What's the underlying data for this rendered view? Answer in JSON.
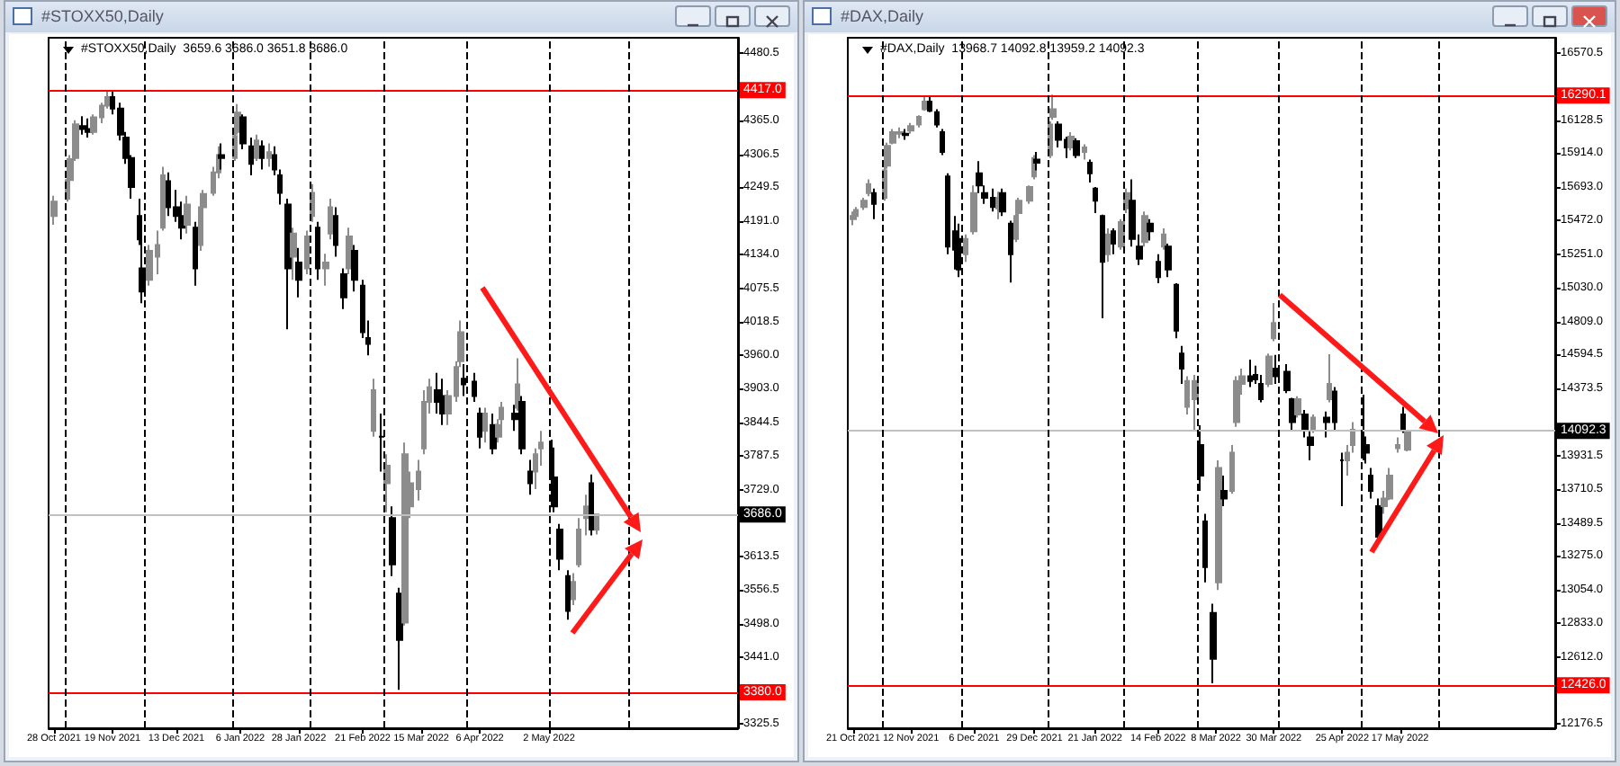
{
  "chart_data": [
    {
      "type": "candlestick",
      "title": "#STOXX50,Daily",
      "subtitle": "#STOXX50,Daily  3659.6 3686.0 3651.8 3686.0",
      "x": [
        "2021-10-28",
        "2021-11-02",
        "2021-11-03",
        "2021-11-05",
        "2021-11-08",
        "2021-11-10",
        "2021-11-12",
        "2021-11-15",
        "2021-11-17",
        "2021-11-19",
        "2021-11-22",
        "2021-11-24",
        "2021-11-26",
        "2021-11-29",
        "2021-11-30",
        "2021-12-03",
        "2021-12-06",
        "2021-12-08",
        "2021-12-10",
        "2021-12-13",
        "2021-12-15",
        "2021-12-17",
        "2021-12-20",
        "2021-12-22",
        "2021-12-23",
        "2021-12-27",
        "2021-12-29",
        "2021-12-30",
        "2022-01-04",
        "2022-01-05",
        "2022-01-07",
        "2022-01-10",
        "2022-01-12",
        "2022-01-14",
        "2022-01-17",
        "2022-01-19",
        "2022-01-21",
        "2022-01-24",
        "2022-01-26",
        "2022-01-28",
        "2022-01-31",
        "2022-02-02",
        "2022-02-04",
        "2022-02-07",
        "2022-02-09",
        "2022-02-11",
        "2022-02-14",
        "2022-02-16",
        "2022-02-18",
        "2022-02-21",
        "2022-02-23",
        "2022-02-25",
        "2022-02-28",
        "2022-03-02",
        "2022-03-04",
        "2022-03-07",
        "2022-03-09",
        "2022-03-11",
        "2022-03-14",
        "2022-03-16",
        "2022-03-18",
        "2022-03-21",
        "2022-03-23",
        "2022-03-25",
        "2022-03-28",
        "2022-03-30",
        "2022-03-31",
        "2022-04-04",
        "2022-04-06",
        "2022-04-08",
        "2022-04-11",
        "2022-04-13",
        "2022-04-14",
        "2022-04-19",
        "2022-04-20",
        "2022-04-22",
        "2022-04-25",
        "2022-04-27",
        "2022-04-29",
        "2022-05-03",
        "2022-05-04",
        "2022-05-06",
        "2022-05-09",
        "2022-05-11",
        "2022-05-13",
        "2022-05-16",
        "2022-05-18",
        "2022-05-20"
      ],
      "ohlc": [
        [
          4200,
          4235,
          4185,
          4225
        ],
        [
          4230,
          4270,
          4225,
          4262
        ],
        [
          4262,
          4305,
          4250,
          4298
        ],
        [
          4300,
          4365,
          4295,
          4358
        ],
        [
          4355,
          4372,
          4340,
          4350
        ],
        [
          4350,
          4368,
          4335,
          4345
        ],
        [
          4345,
          4375,
          4340,
          4370
        ],
        [
          4370,
          4395,
          4360,
          4390
        ],
        [
          4390,
          4415,
          4385,
          4405
        ],
        [
          4405,
          4417,
          4375,
          4385
        ],
        [
          4385,
          4395,
          4330,
          4340
        ],
        [
          4335,
          4345,
          4290,
          4300
        ],
        [
          4300,
          4305,
          4230,
          4250
        ],
        [
          4200,
          4230,
          4150,
          4160
        ],
        [
          4110,
          4175,
          4050,
          4070
        ],
        [
          4090,
          4150,
          4080,
          4140
        ],
        [
          4130,
          4175,
          4100,
          4150
        ],
        [
          4180,
          4285,
          4175,
          4270
        ],
        [
          4260,
          4275,
          4200,
          4215
        ],
        [
          4215,
          4245,
          4190,
          4200
        ],
        [
          4200,
          4225,
          4160,
          4180
        ],
        [
          4185,
          4235,
          4170,
          4220
        ],
        [
          4180,
          4190,
          4080,
          4110
        ],
        [
          4150,
          4225,
          4140,
          4215
        ],
        [
          4215,
          4245,
          4205,
          4238
        ],
        [
          4240,
          4285,
          4235,
          4275
        ],
        [
          4275,
          4320,
          4265,
          4305
        ],
        [
          4305,
          4325,
          4280,
          4300
        ],
        [
          4300,
          4345,
          4295,
          4338
        ],
        [
          4345,
          4393,
          4340,
          4378
        ],
        [
          4370,
          4375,
          4315,
          4325
        ],
        [
          4320,
          4335,
          4270,
          4290
        ],
        [
          4300,
          4340,
          4295,
          4330
        ],
        [
          4320,
          4330,
          4280,
          4300
        ],
        [
          4300,
          4325,
          4285,
          4310
        ],
        [
          4305,
          4320,
          4270,
          4280
        ],
        [
          4270,
          4280,
          4220,
          4240
        ],
        [
          4220,
          4230,
          4005,
          4110
        ],
        [
          4130,
          4180,
          4090,
          4170
        ],
        [
          4120,
          4145,
          4060,
          4090
        ],
        [
          4110,
          4175,
          4100,
          4165
        ],
        [
          4200,
          4255,
          4190,
          4240
        ],
        [
          4180,
          4190,
          4090,
          4110
        ],
        [
          4110,
          4135,
          4080,
          4120
        ],
        [
          4170,
          4230,
          4160,
          4215
        ],
        [
          4200,
          4215,
          4130,
          4150
        ],
        [
          4100,
          4110,
          4040,
          4060
        ],
        [
          4110,
          4180,
          4100,
          4165
        ],
        [
          4140,
          4150,
          4070,
          4090
        ],
        [
          4080,
          4090,
          3990,
          4000
        ],
        [
          3990,
          4020,
          3960,
          3980
        ],
        [
          3830,
          3920,
          3820,
          3900
        ],
        [
          3820,
          3860,
          3760,
          3820
        ],
        [
          3740,
          3790,
          3690,
          3770
        ],
        [
          3680,
          3700,
          3580,
          3600
        ],
        [
          3550,
          3560,
          3384,
          3470
        ],
        [
          3500,
          3810,
          3495,
          3790
        ],
        [
          3700,
          3760,
          3680,
          3740
        ],
        [
          3730,
          3780,
          3710,
          3760
        ],
        [
          3800,
          3900,
          3790,
          3880
        ],
        [
          3880,
          3920,
          3860,
          3905
        ],
        [
          3900,
          3930,
          3860,
          3880
        ],
        [
          3890,
          3920,
          3840,
          3860
        ],
        [
          3860,
          3900,
          3840,
          3890
        ],
        [
          3890,
          3950,
          3880,
          3940
        ],
        [
          3950,
          4020,
          3940,
          4000
        ],
        [
          3920,
          3945,
          3890,
          3910
        ],
        [
          3915,
          3930,
          3880,
          3890
        ],
        [
          3860,
          3870,
          3800,
          3820
        ],
        [
          3830,
          3870,
          3810,
          3860
        ],
        [
          3840,
          3860,
          3790,
          3800
        ],
        [
          3820,
          3850,
          3810,
          3840
        ],
        [
          3850,
          3880,
          3840,
          3870
        ],
        [
          3860,
          3875,
          3830,
          3850
        ],
        [
          3870,
          3955,
          3865,
          3910
        ],
        [
          3880,
          3890,
          3790,
          3800
        ],
        [
          3760,
          3780,
          3720,
          3740
        ],
        [
          3760,
          3800,
          3730,
          3790
        ],
        [
          3800,
          3830,
          3770,
          3810
        ],
        [
          3800,
          3815,
          3730,
          3750
        ],
        [
          3750,
          3770,
          3690,
          3700
        ],
        [
          3660,
          3670,
          3590,
          3610
        ],
        [
          3580,
          3590,
          3505,
          3520
        ],
        [
          3540,
          3585,
          3530,
          3570
        ],
        [
          3600,
          3680,
          3595,
          3660
        ],
        [
          3680,
          3720,
          3650,
          3700
        ],
        [
          3740,
          3755,
          3650,
          3660
        ],
        [
          3659.6,
          3686.0,
          3651.8,
          3686.0
        ]
      ],
      "xlim": [
        "2021-10-26",
        "2022-07-12"
      ],
      "xticks": [
        {
          "value": "2021-10-28",
          "label": "28 Oct 2021"
        },
        {
          "value": "2021-11-19",
          "label": "19 Nov 2021"
        },
        {
          "value": "2021-12-13",
          "label": "13 Dec 2021"
        },
        {
          "value": "2022-01-06",
          "label": "6 Jan 2022"
        },
        {
          "value": "2022-01-28",
          "label": "28 Jan 2022"
        },
        {
          "value": "2022-02-21",
          "label": "21 Feb 2022"
        },
        {
          "value": "2022-03-15",
          "label": "15 Mar 2022"
        },
        {
          "value": "2022-04-06",
          "label": "6 Apr 2022"
        },
        {
          "value": "2022-05-02",
          "label": "2 May 2022"
        }
      ],
      "ylim": [
        3318,
        4507
      ],
      "yticks": [
        {
          "value": 4480.5,
          "label": "4480.5"
        },
        {
          "value": 4365,
          "label": "4365.0"
        },
        {
          "value": 4306.5,
          "label": "4306.5"
        },
        {
          "value": 4249.5,
          "label": "4249.5"
        },
        {
          "value": 4191,
          "label": "4191.0"
        },
        {
          "value": 4134,
          "label": "4134.0"
        },
        {
          "value": 4075.5,
          "label": "4075.5"
        },
        {
          "value": 4018.5,
          "label": "4018.5"
        },
        {
          "value": 3960,
          "label": "3960.0"
        },
        {
          "value": 3903,
          "label": "3903.0"
        },
        {
          "value": 3844.5,
          "label": "3844.5"
        },
        {
          "value": 3787.5,
          "label": "3787.5"
        },
        {
          "value": 3729,
          "label": "3729.0"
        },
        {
          "value": 3613.5,
          "label": "3613.5"
        },
        {
          "value": 3556.5,
          "label": "3556.5"
        },
        {
          "value": 3498,
          "label": "3498.0"
        },
        {
          "value": 3441,
          "label": "3441.0"
        },
        {
          "value": 3325.5,
          "label": "3325.5"
        }
      ],
      "ref_lines": [
        {
          "axis": "y",
          "value": 4417.0,
          "label": "4417.0",
          "color": "#ff0000"
        },
        {
          "axis": "y",
          "value": 3380.0,
          "label": "3380.0",
          "color": "#ff0000"
        },
        {
          "axis": "y",
          "value": 3686.0,
          "label": "3686.0",
          "color": "#c0c0c0"
        },
        {
          "axis": "x",
          "value": "2021-11-01",
          "color": "#000000",
          "line_style": "dashed"
        },
        {
          "axis": "x",
          "value": "2021-12-01",
          "color": "#000000",
          "line_style": "dashed"
        },
        {
          "axis": "x",
          "value": "2022-01-03",
          "color": "#000000",
          "line_style": "dashed"
        },
        {
          "axis": "x",
          "value": "2022-02-01",
          "color": "#000000",
          "line_style": "dashed"
        },
        {
          "axis": "x",
          "value": "2022-03-01",
          "color": "#000000",
          "line_style": "dashed"
        },
        {
          "axis": "x",
          "value": "2022-04-01",
          "color": "#000000",
          "line_style": "dashed"
        },
        {
          "axis": "x",
          "value": "2022-05-02",
          "color": "#000000",
          "line_style": "dashed"
        },
        {
          "axis": "x",
          "value": "2022-06-01",
          "color": "#000000",
          "line_style": "dashed"
        }
      ]
    },
    {
      "type": "candlestick",
      "title": "#DAX,Daily",
      "subtitle": "#DAX,Daily  13968.7 14092.8 13959.2 14092.3",
      "x": [
        "2021-10-21",
        "2021-10-22",
        "2021-10-25",
        "2021-10-27",
        "2021-10-29",
        "2021-11-02",
        "2021-11-03",
        "2021-11-05",
        "2021-11-08",
        "2021-11-10",
        "2021-11-12",
        "2021-11-15",
        "2021-11-17",
        "2021-11-19",
        "2021-11-22",
        "2021-11-24",
        "2021-11-26",
        "2021-11-29",
        "2021-11-30",
        "2021-12-03",
        "2021-12-06",
        "2021-12-08",
        "2021-12-10",
        "2021-12-13",
        "2021-12-15",
        "2021-12-17",
        "2021-12-20",
        "2021-12-22",
        "2021-12-23",
        "2021-12-27",
        "2021-12-29",
        "2021-12-30",
        "2022-01-04",
        "2022-01-05",
        "2022-01-07",
        "2022-01-10",
        "2022-01-12",
        "2022-01-14",
        "2022-01-17",
        "2022-01-19",
        "2022-01-21",
        "2022-01-24",
        "2022-01-26",
        "2022-01-28",
        "2022-01-31",
        "2022-02-02",
        "2022-02-04",
        "2022-02-07",
        "2022-02-09",
        "2022-02-11",
        "2022-02-14",
        "2022-02-16",
        "2022-02-18",
        "2022-02-21",
        "2022-02-23",
        "2022-02-25",
        "2022-02-28",
        "2022-03-02",
        "2022-03-04",
        "2022-03-07",
        "2022-03-09",
        "2022-03-11",
        "2022-03-14",
        "2022-03-16",
        "2022-03-18",
        "2022-03-21",
        "2022-03-23",
        "2022-03-25",
        "2022-03-28",
        "2022-03-30",
        "2022-03-31",
        "2022-04-04",
        "2022-04-06",
        "2022-04-08",
        "2022-04-11",
        "2022-04-13",
        "2022-04-14",
        "2022-04-19",
        "2022-04-20",
        "2022-04-22",
        "2022-04-25",
        "2022-04-27",
        "2022-04-29",
        "2022-05-03",
        "2022-05-04",
        "2022-05-06",
        "2022-05-09",
        "2022-05-11",
        "2022-05-13",
        "2022-05-16",
        "2022-05-18",
        "2022-05-20"
      ],
      "ohlc": [
        [
          15480,
          15530,
          15440,
          15500
        ],
        [
          15500,
          15560,
          15480,
          15540
        ],
        [
          15560,
          15620,
          15540,
          15600
        ],
        [
          15650,
          15740,
          15630,
          15710
        ],
        [
          15650,
          15680,
          15480,
          15580
        ],
        [
          15620,
          15830,
          15600,
          15800
        ],
        [
          15830,
          15980,
          15810,
          15960
        ],
        [
          15980,
          16070,
          15970,
          16050
        ],
        [
          16040,
          16080,
          16010,
          16050
        ],
        [
          16040,
          16070,
          16000,
          16030
        ],
        [
          16060,
          16110,
          16040,
          16090
        ],
        [
          16100,
          16160,
          16080,
          16150
        ],
        [
          16200,
          16280,
          16190,
          16250
        ],
        [
          16250,
          16290,
          16180,
          16190
        ],
        [
          16180,
          16200,
          16080,
          16100
        ],
        [
          16050,
          16070,
          15900,
          15920
        ],
        [
          15760,
          15780,
          15250,
          15300
        ],
        [
          15400,
          15500,
          15150,
          15280
        ],
        [
          15350,
          15450,
          15100,
          15150
        ],
        [
          15250,
          15380,
          15200,
          15350
        ],
        [
          15400,
          15700,
          15380,
          15650
        ],
        [
          15780,
          15860,
          15650,
          15700
        ],
        [
          15650,
          15700,
          15580,
          15620
        ],
        [
          15620,
          15680,
          15530,
          15560
        ],
        [
          15550,
          15660,
          15480,
          15620
        ],
        [
          15650,
          15680,
          15500,
          15530
        ],
        [
          15450,
          15470,
          15065,
          15250
        ],
        [
          15350,
          15520,
          15330,
          15500
        ],
        [
          15520,
          15620,
          15500,
          15600
        ],
        [
          15600,
          15700,
          15580,
          15690
        ],
        [
          15760,
          15900,
          15740,
          15880
        ],
        [
          15870,
          15920,
          15800,
          15850
        ],
        [
          15900,
          16120,
          15880,
          16100
        ],
        [
          16150,
          16295,
          16130,
          16200
        ],
        [
          16100,
          16120,
          15950,
          16000
        ],
        [
          16000,
          16020,
          15880,
          15950
        ],
        [
          15950,
          16050,
          15930,
          16020
        ],
        [
          15990,
          16010,
          15880,
          15900
        ],
        [
          15920,
          15970,
          15870,
          15950
        ],
        [
          15850,
          15870,
          15720,
          15780
        ],
        [
          15680,
          15690,
          15520,
          15600
        ],
        [
          15500,
          15510,
          14830,
          15200
        ],
        [
          15250,
          15420,
          15200,
          15380
        ],
        [
          15400,
          15420,
          15250,
          15320
        ],
        [
          15300,
          15480,
          15280,
          15460
        ],
        [
          15550,
          15680,
          15520,
          15650
        ],
        [
          15600,
          15740,
          15300,
          15350
        ],
        [
          15300,
          15380,
          15180,
          15220
        ],
        [
          15330,
          15530,
          15300,
          15500
        ],
        [
          15450,
          15480,
          15340,
          15400
        ],
        [
          15200,
          15250,
          15060,
          15100
        ],
        [
          15300,
          15420,
          15280,
          15380
        ],
        [
          15300,
          15320,
          15100,
          15150
        ],
        [
          15050,
          15060,
          14700,
          14750
        ],
        [
          14600,
          14650,
          14400,
          14500
        ],
        [
          14250,
          14450,
          14200,
          14420
        ],
        [
          14300,
          14460,
          14100,
          14420
        ],
        [
          14000,
          14130,
          13700,
          13800
        ],
        [
          13500,
          13550,
          13100,
          13200
        ],
        [
          12900,
          12960,
          12440,
          12600
        ],
        [
          13100,
          13900,
          13050,
          13850
        ],
        [
          13700,
          13800,
          13600,
          13650
        ],
        [
          13700,
          14000,
          13680,
          13950
        ],
        [
          14150,
          14450,
          14120,
          14420
        ],
        [
          14400,
          14500,
          14330,
          14450
        ],
        [
          14450,
          14560,
          14380,
          14420
        ],
        [
          14460,
          14520,
          14400,
          14430
        ],
        [
          14400,
          14460,
          14280,
          14300
        ],
        [
          14400,
          14600,
          14380,
          14580
        ],
        [
          14700,
          14930,
          14680,
          14800
        ],
        [
          14500,
          14590,
          14400,
          14450
        ],
        [
          14480,
          14530,
          14340,
          14360
        ],
        [
          14300,
          14310,
          14100,
          14150
        ],
        [
          14200,
          14320,
          14180,
          14300
        ],
        [
          14200,
          14230,
          14050,
          14100
        ],
        [
          14050,
          14100,
          13900,
          14000
        ],
        [
          14100,
          14200,
          14080,
          14180
        ],
        [
          14180,
          14220,
          14050,
          14150
        ],
        [
          14300,
          14595,
          14280,
          14400
        ],
        [
          14350,
          14380,
          14100,
          14150
        ],
        [
          13900,
          13950,
          13600,
          13900
        ],
        [
          13900,
          14000,
          13800,
          13950
        ],
        [
          14000,
          14150,
          13950,
          14100
        ],
        [
          14050,
          14330,
          13900,
          13950
        ],
        [
          14000,
          14050,
          13880,
          13950
        ],
        [
          13800,
          13850,
          13650,
          13700
        ],
        [
          13600,
          13650,
          13380,
          13400
        ],
        [
          13600,
          13700,
          13550,
          13650
        ],
        [
          13650,
          13850,
          13640,
          13800
        ],
        [
          13980,
          14050,
          13950,
          14000
        ],
        [
          14200,
          14250,
          14080,
          14100
        ],
        [
          13968.7,
          14092.8,
          13959.2,
          14092.3
        ]
      ],
      "xlim": [
        "2021-10-19",
        "2022-07-15"
      ],
      "xticks": [
        {
          "value": "2021-10-21",
          "label": "21 Oct 2021"
        },
        {
          "value": "2021-11-12",
          "label": "12 Nov 2021"
        },
        {
          "value": "2021-12-06",
          "label": "6 Dec 2021"
        },
        {
          "value": "2021-12-29",
          "label": "29 Dec 2021"
        },
        {
          "value": "2022-01-21",
          "label": "21 Jan 2022"
        },
        {
          "value": "2022-02-14",
          "label": "14 Feb 2022"
        },
        {
          "value": "2022-03-08",
          "label": "8 Mar 2022"
        },
        {
          "value": "2022-03-30",
          "label": "30 Mar 2022"
        },
        {
          "value": "2022-04-25",
          "label": "25 Apr 2022"
        },
        {
          "value": "2022-05-17",
          "label": "17 May 2022"
        }
      ],
      "ylim": [
        12145,
        16668
      ],
      "yticks": [
        {
          "value": 16570.5,
          "label": "16570.5"
        },
        {
          "value": 16128.5,
          "label": "16128.5"
        },
        {
          "value": 15914,
          "label": "15914.0"
        },
        {
          "value": 15693,
          "label": "15693.0"
        },
        {
          "value": 15472,
          "label": "15472.0"
        },
        {
          "value": 15251,
          "label": "15251.0"
        },
        {
          "value": 15030,
          "label": "15030.0"
        },
        {
          "value": 14809,
          "label": "14809.0"
        },
        {
          "value": 14594.5,
          "label": "14594.5"
        },
        {
          "value": 14373.5,
          "label": "14373.5"
        },
        {
          "value": 13931.5,
          "label": "13931.5"
        },
        {
          "value": 13710.5,
          "label": "13710.5"
        },
        {
          "value": 13489.5,
          "label": "13489.5"
        },
        {
          "value": 13275,
          "label": "13275.0"
        },
        {
          "value": 13054,
          "label": "13054.0"
        },
        {
          "value": 12833,
          "label": "12833.0"
        },
        {
          "value": 12612,
          "label": "12612.0"
        },
        {
          "value": 12176.5,
          "label": "12176.5"
        }
      ],
      "ref_lines": [
        {
          "axis": "y",
          "value": 16290.1,
          "label": "16290.1",
          "color": "#ff0000"
        },
        {
          "axis": "y",
          "value": 12426.0,
          "label": "12426.0",
          "color": "#ff0000"
        },
        {
          "axis": "y",
          "value": 14092.3,
          "label": "14092.3",
          "color": "#c0c0c0"
        },
        {
          "axis": "x",
          "value": "2021-11-01",
          "color": "#000000",
          "line_style": "dashed"
        },
        {
          "axis": "x",
          "value": "2021-12-01",
          "color": "#000000",
          "line_style": "dashed"
        },
        {
          "axis": "x",
          "value": "2022-01-03",
          "color": "#000000",
          "line_style": "dashed"
        },
        {
          "axis": "x",
          "value": "2022-02-01",
          "color": "#000000",
          "line_style": "dashed"
        },
        {
          "axis": "x",
          "value": "2022-03-01",
          "color": "#000000",
          "line_style": "dashed"
        },
        {
          "axis": "x",
          "value": "2022-04-01",
          "color": "#000000",
          "line_style": "dashed"
        },
        {
          "axis": "x",
          "value": "2022-05-02",
          "color": "#000000",
          "line_style": "dashed"
        },
        {
          "axis": "x",
          "value": "2022-06-01",
          "color": "#000000",
          "line_style": "dashed"
        }
      ]
    }
  ]
}
